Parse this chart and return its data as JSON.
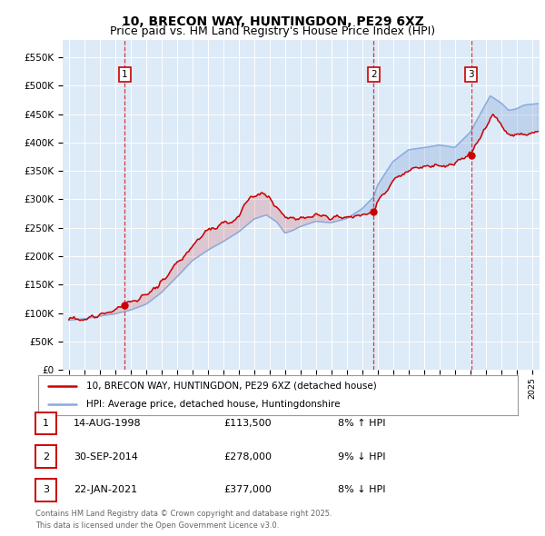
{
  "title_line1": "10, BRECON WAY, HUNTINGDON, PE29 6XZ",
  "title_line2": "Price paid vs. HM Land Registry's House Price Index (HPI)",
  "bg_color": "#ddeaf7",
  "ylabel_ticks": [
    "£0",
    "£50K",
    "£100K",
    "£150K",
    "£200K",
    "£250K",
    "£300K",
    "£350K",
    "£400K",
    "£450K",
    "£500K",
    "£550K"
  ],
  "ytick_values": [
    0,
    50000,
    100000,
    150000,
    200000,
    250000,
    300000,
    350000,
    400000,
    450000,
    500000,
    550000
  ],
  "ylim": [
    0,
    580000
  ],
  "xlim_left": 1994.6,
  "xlim_right": 2025.5,
  "legend_line1": "10, BRECON WAY, HUNTINGDON, PE29 6XZ (detached house)",
  "legend_line2": "HPI: Average price, detached house, Huntingdonshire",
  "red_color": "#cc0000",
  "blue_color": "#88aadd",
  "dashed_color": "#cc0000",
  "sale_markers": [
    {
      "label": "1",
      "date_x": 1998.62,
      "price": 113500,
      "pct": "8%",
      "dir": "↑",
      "date_str": "14-AUG-1998"
    },
    {
      "label": "2",
      "date_x": 2014.75,
      "price": 278000,
      "pct": "9%",
      "dir": "↓",
      "date_str": "30-SEP-2014"
    },
    {
      "label": "3",
      "date_x": 2021.06,
      "price": 377000,
      "pct": "8%",
      "dir": "↓",
      "date_str": "22-JAN-2021"
    }
  ],
  "footer_line1": "Contains HM Land Registry data © Crown copyright and database right 2025.",
  "footer_line2": "This data is licensed under the Open Government Licence v3.0."
}
